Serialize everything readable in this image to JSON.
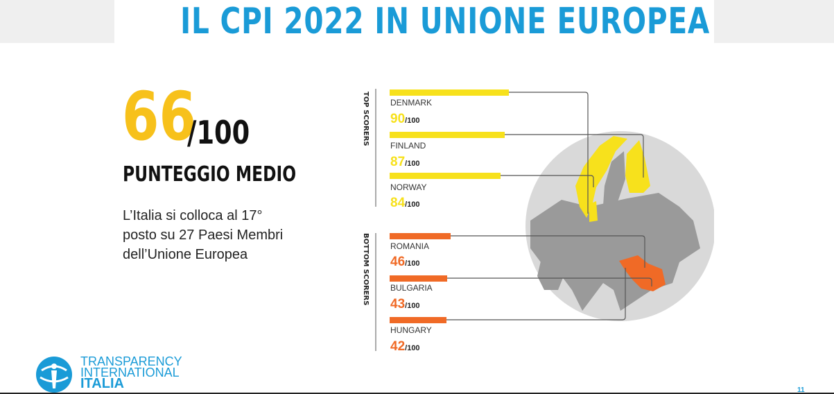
{
  "header": {
    "title": "IL CPI 2022 IN UNIONE EUROPEA"
  },
  "summary": {
    "score": "66",
    "score_max": "/100",
    "score_label": "PUNTEGGIO MEDIO",
    "description": "L’Italia si colloca al 17° posto su 27 Paesi Membri dell’Unione Europea"
  },
  "infographic": {
    "top_label": "TOP SCORERS",
    "bottom_label": "BOTTOM SCORERS",
    "out_of": "/100",
    "top": [
      {
        "country": "DENMARK",
        "score": "90"
      },
      {
        "country": "FINLAND",
        "score": "87"
      },
      {
        "country": "NORWAY",
        "score": "84"
      }
    ],
    "bottom": [
      {
        "country": "ROMANIA",
        "score": "46"
      },
      {
        "country": "BULGARIA",
        "score": "43"
      },
      {
        "country": "HUNGARY",
        "score": "42"
      }
    ],
    "colors": {
      "top": "#f7e11c",
      "bottom": "#f06a26",
      "map_land": "#9a9a9a",
      "map_sea": "#d9d9d9"
    }
  },
  "logo": {
    "line1": "TRANSPARENCY",
    "line2": "INTERNATIONAL",
    "line3": "ITALIA"
  },
  "footer": {
    "page_number": "11"
  }
}
